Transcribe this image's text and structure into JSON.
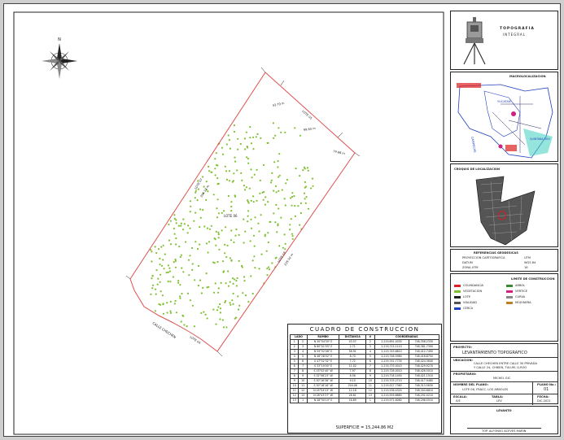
{
  "plan": {
    "lot_label": "LOTE 06",
    "street_label": "CALLE CHECHEN",
    "side_labels": [
      "LOTE 05",
      "LOTE 07",
      "LOTE 08",
      "LOTE 04"
    ],
    "dim_labels": [
      "43.79 m",
      "99.60 m",
      "79.66 m",
      "204.13 m",
      "226.10 m"
    ],
    "colors": {
      "boundary": "#e05050",
      "vegetation": "#7fbf30",
      "ink": "#222222"
    }
  },
  "construction_table": {
    "title": "CUADRO DE CONSTRUCCION",
    "headers": [
      "LADO",
      "RUMBO",
      "DISTANCIA",
      "V",
      "COORDENADAS"
    ],
    "rows": [
      [
        "1",
        "2",
        "N 30°04'30\" E",
        "43.57",
        "2",
        "2,219,691.4030",
        "748,358.2330"
      ],
      [
        "2",
        "3",
        "N 60°01'55\" E",
        "2.71",
        "3",
        "2,219,715.1110",
        "748,381.7390"
      ],
      [
        "3",
        "4",
        "N 59°52'08\" E",
        "56.91",
        "4",
        "2,219,743.8810",
        "748,412.7490"
      ],
      [
        "4",
        "5",
        "N 46°28'02\" E",
        "6.70",
        "5",
        "2,219,748.5980",
        "748,418.8750"
      ],
      [
        "5",
        "6",
        "S 47°02'32\" E",
        "7.72",
        "6",
        "2,219,742.7730",
        "748,424.3640"
      ],
      [
        "6",
        "7",
        "S 33°19'00\" E",
        "11.02",
        "7",
        "2,219,733.0010",
        "748,429.9270"
      ],
      [
        "7",
        "8",
        "S 33°52'40\" W",
        "7.97",
        "8",
        "2,219,726.0010",
        "748,426.5010"
      ],
      [
        "8",
        "9",
        "S 32°58'23\" W",
        "8.56",
        "9",
        "2,219,718.1450",
        "748,421.1510"
      ],
      [
        "9",
        "10",
        "S 30°16'38\" W",
        "9.10",
        "10",
        "2,219,703.2710",
        "748,417.9480"
      ],
      [
        "10",
        "11",
        "S 30°18'16\" W",
        "204.06",
        "11",
        "2,219,527.7360",
        "748,313.5630"
      ],
      [
        "11",
        "12",
        "N 45°54'23\" W",
        "12.18",
        "12",
        "2,219,536.4320",
        "748,304.6810"
      ],
      [
        "12",
        "13",
        "N 28°43'37\" W",
        "26.61",
        "13",
        "2,219,559.8680",
        "748,292.0210"
      ],
      [
        "13",
        "1",
        "N 28°50'10\" E",
        "16.89",
        "1",
        "2,219,571.6060",
        "748,298.5510"
      ]
    ],
    "surface": "SUPERFICIE = 15,244.86 M2"
  },
  "title_block": {
    "logo_title": "TOPOGRAFIA",
    "logo_subtitle": "INTEGRAL",
    "macro_title": "MACROLOCALIZACION",
    "macro_labels": [
      "CAMPECHE",
      "YUCATAN",
      "QUINTANA ROO"
    ],
    "croquis_title": "CROQUIS DE LOCALIZACION",
    "ref_title": "REFERENCIAS GEODESICAS",
    "ref_rows": [
      [
        "PROYECCION CARTOGRAFICA",
        "UTM"
      ],
      [
        "DATUM",
        "WGS 84"
      ],
      [
        "ZONA UTM",
        "16"
      ]
    ],
    "legend_title": "LIMITE DE CONSTRUCCION",
    "legend_items": [
      "COLINDANCIA",
      "VEGETACION",
      "LOTE",
      "VIALIDAD",
      "CERCA",
      "ARBOL",
      "VERTICE",
      "CURVA",
      "MOJONERA"
    ],
    "project_label": "PROYECTO:",
    "project_value": "LEVANTAMIENTO TOPOGRAFICO",
    "location_label": "UBICACION:",
    "location_value_1": "CALLE CHECHEN ENTRE CALLE 30 PRIVADA",
    "location_value_2": "Y CALLE 24, CHIKEN, TULUM, Q.ROO",
    "owner_label": "PROPIETARIO:",
    "owner_value": "MICHEL GIC",
    "plan_name_label": "NOMBRE DEL PLANO:",
    "plan_name_value": "LOTE 06, FRACC. LOS ARBOLES",
    "sheet_label": "PLANO No.:",
    "sheet_value": "01",
    "scale_label": "ESCALA:",
    "scale_value": "S/E",
    "survey_label": "TABLA:",
    "survey_value": "LEV",
    "date_label": "FECHA:",
    "date_value": "DIC-2021",
    "signature_label": "LEVANTO",
    "signature_name": "TOP. ALFONSO ACEVES MARIN"
  }
}
